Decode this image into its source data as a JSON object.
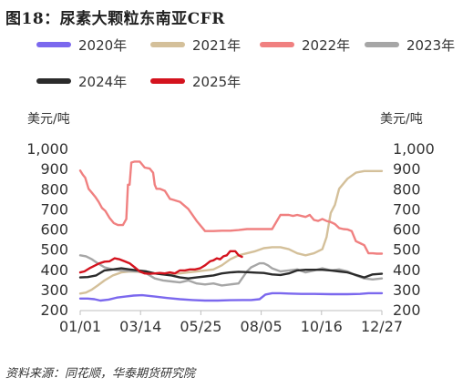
{
  "title": "图18：尿素大颗粒东南亚CFR",
  "source": "资料来源：同花顺，华泰期货研究院",
  "chart_data": {
    "type": "line",
    "ylabel_left": "美元/吨",
    "ylabel_right": "美元/吨",
    "ylim": [
      200,
      1000
    ],
    "yticks": [
      "200",
      "300",
      "400",
      "500",
      "600",
      "700",
      "800",
      "900",
      "1,000"
    ],
    "ytick_values": [
      200,
      300,
      400,
      500,
      600,
      700,
      800,
      900,
      1000
    ],
    "xticks": [
      "01/01",
      "03/14",
      "05/25",
      "08/05",
      "10/16",
      "12/27"
    ],
    "xtick_days": [
      1,
      73,
      145,
      217,
      289,
      361
    ],
    "xlim_days": [
      1,
      361
    ],
    "grid": false,
    "legend_position": "top",
    "series": [
      {
        "name": "2020年",
        "color": "#7b68ee",
        "x": [
          1,
          10,
          18,
          25,
          35,
          45,
          55,
          65,
          75,
          90,
          105,
          120,
          135,
          150,
          165,
          180,
          195,
          205,
          215,
          222,
          230,
          240,
          250,
          265,
          280,
          300,
          320,
          335,
          345,
          355,
          361
        ],
        "values": [
          255,
          255,
          252,
          245,
          250,
          260,
          265,
          270,
          272,
          265,
          258,
          252,
          248,
          245,
          245,
          247,
          248,
          248,
          252,
          275,
          282,
          282,
          280,
          278,
          278,
          277,
          277,
          278,
          282,
          282,
          282
        ]
      },
      {
        "name": "2021年",
        "color": "#d4c09a",
        "x": [
          1,
          8,
          15,
          22,
          30,
          40,
          50,
          60,
          70,
          80,
          90,
          100,
          110,
          120,
          130,
          140,
          150,
          160,
          170,
          180,
          190,
          200,
          210,
          220,
          230,
          240,
          250,
          260,
          270,
          280,
          290,
          295,
          300,
          305,
          310,
          320,
          330,
          340,
          350,
          361
        ],
        "values": [
          280,
          285,
          300,
          320,
          345,
          370,
          385,
          390,
          388,
          385,
          380,
          375,
          378,
          380,
          385,
          390,
          395,
          400,
          420,
          450,
          470,
          480,
          490,
          505,
          510,
          510,
          500,
          480,
          470,
          480,
          500,
          560,
          680,
          720,
          800,
          850,
          880,
          888,
          888,
          888
        ]
      },
      {
        "name": "2022年",
        "color": "#f08080",
        "x": [
          1,
          4,
          7,
          11,
          15,
          19,
          23,
          27,
          31,
          36,
          41,
          46,
          52,
          56,
          58,
          60,
          62,
          66,
          72,
          78,
          84,
          88,
          90,
          92,
          96,
          102,
          108,
          112,
          116,
          120,
          130,
          140,
          150,
          160,
          170,
          180,
          190,
          200,
          210,
          220,
          230,
          240,
          250,
          255,
          260,
          265,
          270,
          275,
          280,
          285,
          290,
          295,
          300,
          305,
          310,
          315,
          320,
          325,
          330,
          335,
          340,
          345,
          350,
          355,
          361
        ],
        "values": [
          890,
          870,
          855,
          800,
          780,
          760,
          735,
          705,
          690,
          655,
          630,
          620,
          620,
          650,
          820,
          820,
          930,
          935,
          935,
          905,
          900,
          880,
          820,
          800,
          800,
          790,
          750,
          745,
          740,
          735,
          700,
          640,
          590,
          590,
          592,
          592,
          595,
          600,
          600,
          600,
          600,
          670,
          670,
          665,
          670,
          665,
          660,
          670,
          645,
          640,
          650,
          640,
          635,
          625,
          605,
          600,
          598,
          590,
          540,
          530,
          520,
          480,
          480,
          478,
          478
        ]
      },
      {
        "name": "2023年",
        "color": "#a6a6a6",
        "x": [
          1,
          8,
          15,
          22,
          30,
          40,
          50,
          60,
          70,
          80,
          90,
          100,
          110,
          120,
          130,
          140,
          150,
          160,
          170,
          180,
          190,
          195,
          200,
          205,
          210,
          215,
          220,
          225,
          230,
          240,
          250,
          260,
          270,
          280,
          290,
          300,
          310,
          320,
          330,
          340,
          350,
          361
        ],
        "values": [
          470,
          465,
          450,
          430,
          410,
          400,
          395,
          392,
          390,
          380,
          355,
          345,
          340,
          335,
          345,
          330,
          325,
          330,
          320,
          325,
          330,
          360,
          390,
          410,
          420,
          430,
          430,
          420,
          405,
          390,
          395,
          400,
          385,
          395,
          405,
          395,
          400,
          390,
          370,
          355,
          350,
          355
        ]
      },
      {
        "name": "2024年",
        "color": "#2b2b2b",
        "x": [
          1,
          10,
          20,
          30,
          40,
          50,
          60,
          70,
          80,
          90,
          100,
          110,
          120,
          130,
          140,
          150,
          160,
          170,
          180,
          190,
          200,
          210,
          220,
          230,
          240,
          250,
          260,
          270,
          280,
          290,
          300,
          310,
          320,
          330,
          340,
          350,
          361
        ],
        "values": [
          360,
          362,
          370,
          395,
          400,
          405,
          400,
          395,
          390,
          380,
          375,
          370,
          360,
          355,
          360,
          365,
          370,
          380,
          385,
          388,
          386,
          384,
          382,
          375,
          372,
          380,
          395,
          398,
          398,
          398,
          395,
          390,
          385,
          372,
          360,
          375,
          378
        ]
      },
      {
        "name": "2025年",
        "color": "#d4131e",
        "x": [
          1,
          6,
          12,
          18,
          24,
          30,
          36,
          42,
          48,
          54,
          60,
          66,
          72,
          78,
          84,
          90,
          96,
          102,
          108,
          114,
          120,
          126,
          132,
          138,
          144,
          150,
          156,
          160,
          164,
          168,
          172,
          176,
          180,
          186,
          190,
          194
        ],
        "values": [
          385,
          390,
          405,
          418,
          430,
          438,
          440,
          455,
          450,
          440,
          430,
          410,
          390,
          380,
          378,
          380,
          382,
          380,
          385,
          380,
          395,
          395,
          400,
          400,
          405,
          420,
          440,
          445,
          455,
          450,
          465,
          470,
          490,
          490,
          470,
          462
        ]
      }
    ]
  }
}
